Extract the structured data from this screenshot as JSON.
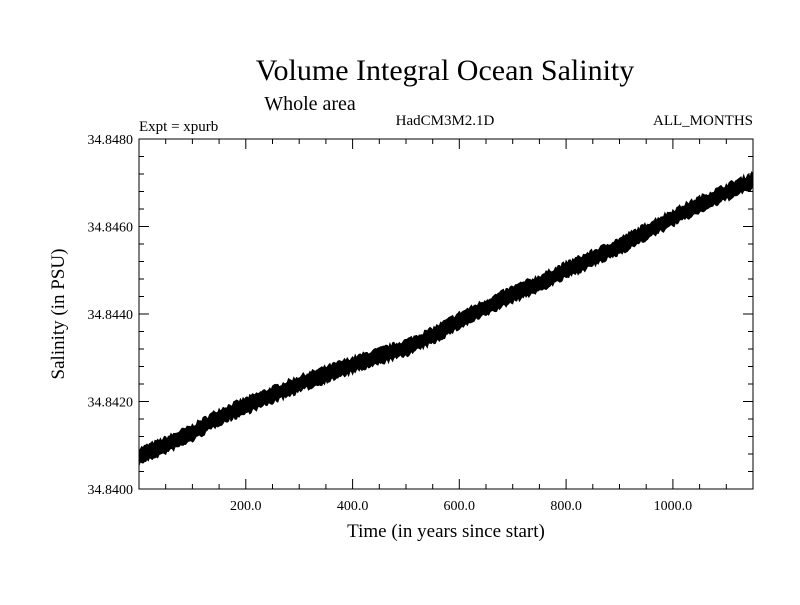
{
  "chart_data": {
    "type": "line",
    "title": "Volume Integral Ocean Salinity",
    "subtitle": "Whole area",
    "experiment": "Expt = xpurb",
    "model": "HadCM3M2.1D",
    "period": "ALL_MONTHS",
    "xlabel": "Time (in years since start)",
    "ylabel": "Salinity (in PSU)",
    "xlim": [
      0,
      1150
    ],
    "ylim": [
      34.84,
      34.848
    ],
    "x_ticks": [
      200,
      400,
      600,
      800,
      1000
    ],
    "x_tick_labels": [
      "200.0",
      "400.0",
      "600.0",
      "800.0",
      "1000.0"
    ],
    "y_ticks": [
      34.84,
      34.842,
      34.844,
      34.846,
      34.848
    ],
    "y_tick_labels": [
      "34.8400",
      "34.8420",
      "34.8440",
      "34.8460",
      "34.8480"
    ],
    "grid": false,
    "series": [
      {
        "name": "Salinity",
        "band_halfwidth": 0.00017,
        "x": [
          0,
          50,
          100,
          150,
          200,
          250,
          300,
          350,
          400,
          450,
          500,
          550,
          600,
          650,
          700,
          750,
          800,
          850,
          900,
          950,
          1000,
          1050,
          1100,
          1150
        ],
        "values": [
          34.84075,
          34.841,
          34.84128,
          34.84165,
          34.8419,
          34.84215,
          34.8424,
          34.84262,
          34.84283,
          34.84303,
          34.84323,
          34.8435,
          34.84385,
          34.84415,
          34.84445,
          34.8447,
          34.845,
          34.84527,
          34.84555,
          34.84588,
          34.8462,
          34.8465,
          34.84678,
          34.84705
        ]
      }
    ]
  }
}
